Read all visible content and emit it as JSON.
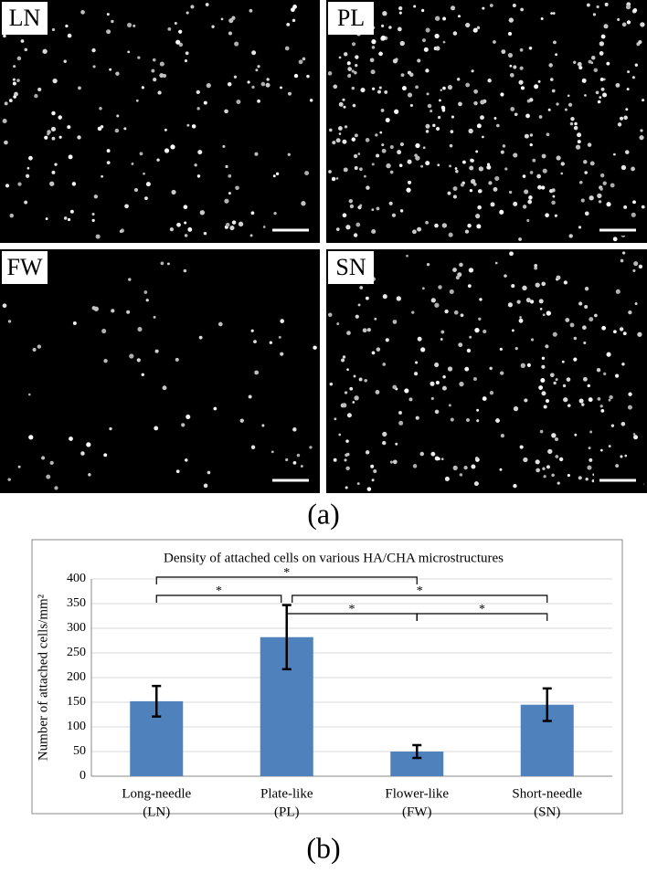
{
  "panels": [
    {
      "label": "LN"
    },
    {
      "label": "PL"
    },
    {
      "label": "FW"
    },
    {
      "label": "SN"
    }
  ],
  "caption_a": "(a)",
  "caption_b": "(b)",
  "chart_data": {
    "type": "bar",
    "title": "Density of attached cells on various HA/CHA microstructures",
    "y_label": "Number of attached cells/mm²",
    "categories": [
      [
        "Long-needle",
        "(LN)"
      ],
      [
        "Plate-like",
        "(PL)"
      ],
      [
        "Flower-like",
        "(FW)"
      ],
      [
        "Short-needle",
        "(SN)"
      ]
    ],
    "values": [
      152,
      282,
      50,
      145
    ],
    "errors": [
      31,
      65,
      13,
      33
    ],
    "color": "#4f81bd",
    "ylim": [
      0,
      400
    ],
    "yticks": [
      0,
      50,
      100,
      150,
      200,
      250,
      300,
      350,
      400
    ],
    "grid": true,
    "significance": [
      {
        "from": 0,
        "to": 2,
        "label": "*"
      },
      {
        "from": 0,
        "to": 1,
        "label": "*"
      },
      {
        "from": 1,
        "to": 3,
        "label": "*"
      },
      {
        "from": 1,
        "to": 2,
        "label": "*"
      },
      {
        "from": 2,
        "to": 3,
        "label": "*"
      }
    ]
  }
}
